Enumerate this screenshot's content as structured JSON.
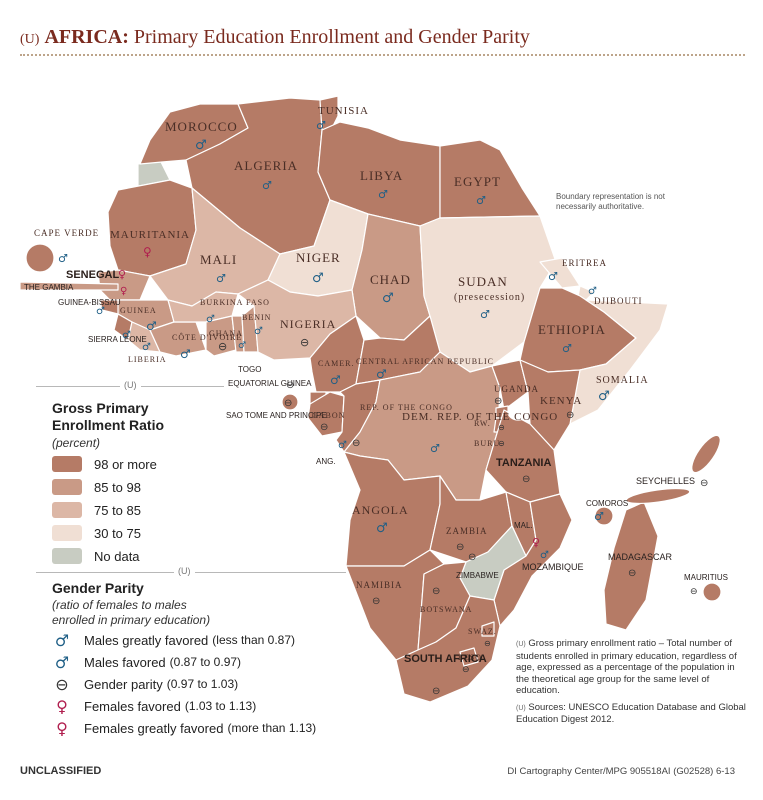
{
  "header": {
    "prefix": "(U)",
    "region": "AFRICA:",
    "title": "Primary Education Enrollment and Gender Parity"
  },
  "colors": {
    "ratio_98_or_more": "#b57b66",
    "ratio_85_to_98": "#c99a86",
    "ratio_75_to_85": "#dcb7a6",
    "ratio_30_to_75": "#f0dfd4",
    "no_data": "#c8ccc2",
    "males_symbol": "#1f5f86",
    "parity_symbol": "#333333",
    "females_symbol": "#b01e4e",
    "border": "#ffffff"
  },
  "map": {
    "boundary_note": "Boundary representation is not necessarily authoritative.",
    "countries": [
      {
        "name": "MOROCCO",
        "parity": "males_greatly_favored"
      },
      {
        "name": "TUNISIA",
        "parity": "males_favored"
      },
      {
        "name": "ALGERIA",
        "parity": "males_favored"
      },
      {
        "name": "LIBYA",
        "parity": "males_favored"
      },
      {
        "name": "EGYPT",
        "parity": "males_favored"
      },
      {
        "name": "MAURITANIA",
        "parity": "females_greatly_favored"
      },
      {
        "name": "MALI",
        "parity": "males_favored"
      },
      {
        "name": "NIGER",
        "parity": "males_greatly_favored"
      },
      {
        "name": "CHAD",
        "parity": "males_greatly_favored"
      },
      {
        "name": "SUDAN",
        "subtitle": "(presecession)",
        "parity": "males_favored"
      },
      {
        "name": "ERITREA",
        "parity": "males_favored"
      },
      {
        "name": "DJIBOUTI",
        "parity": "males_favored"
      },
      {
        "name": "ETHIOPIA",
        "parity": "males_favored"
      },
      {
        "name": "SOMALIA",
        "parity": "males_greatly_favored"
      },
      {
        "name": "CAPE VERDE",
        "parity": "males_favored"
      },
      {
        "name": "SENEGAL",
        "parity": "females_greatly_favored"
      },
      {
        "name": "THE GAMBIA",
        "parity": "females_favored"
      },
      {
        "name": "GUINEA-BISSAU",
        "parity": "males_favored"
      },
      {
        "name": "GUINEA",
        "parity": "males_greatly_favored"
      },
      {
        "name": "SIERRA LEONE",
        "parity": "males_favored"
      },
      {
        "name": "LIBERIA",
        "parity": "males_favored"
      },
      {
        "name": "BURKINA FASO",
        "parity": "males_favored"
      },
      {
        "name": "CÔTE D'IVOIRE",
        "parity": "males_greatly_favored"
      },
      {
        "name": "GHANA",
        "parity": "gender_parity"
      },
      {
        "name": "BENIN",
        "parity": "males_favored"
      },
      {
        "name": "TOGO",
        "parity": "males_favored"
      },
      {
        "name": "NIGERIA",
        "parity": "gender_parity"
      },
      {
        "name": "CAMER.",
        "parity": "males_greatly_favored"
      },
      {
        "name": "CENTRAL AFRICAN REPUBLIC",
        "parity": "males_greatly_favored"
      },
      {
        "name": "EQUATORIAL GUINEA",
        "parity": "gender_parity"
      },
      {
        "name": "SAO TOME AND PRINCIPE",
        "parity": "gender_parity"
      },
      {
        "name": "GABON",
        "parity": "gender_parity"
      },
      {
        "name": "REP. OF THE CONGO",
        "parity": "gender_parity"
      },
      {
        "name": "ANG.",
        "parity": "males_favored"
      },
      {
        "name": "DEM. REP. OF THE CONGO",
        "parity": "males_favored"
      },
      {
        "name": "UGANDA",
        "parity": "gender_parity"
      },
      {
        "name": "KENYA",
        "parity": "gender_parity"
      },
      {
        "name": "RW.",
        "parity": "gender_parity"
      },
      {
        "name": "BURU.",
        "parity": "gender_parity"
      },
      {
        "name": "TANZANIA",
        "parity": "gender_parity"
      },
      {
        "name": "SEYCHELLES",
        "parity": "gender_parity"
      },
      {
        "name": "COMOROS",
        "parity": "males_favored"
      },
      {
        "name": "ANGOLA",
        "parity": "males_greatly_favored"
      },
      {
        "name": "ZAMBIA",
        "parity": "gender_parity"
      },
      {
        "name": "MAL.",
        "parity": "females_favored"
      },
      {
        "name": "MOZAMBIQUE",
        "parity": "males_favored"
      },
      {
        "name": "ZIMBABWE",
        "parity": "gender_parity"
      },
      {
        "name": "MADAGASCAR",
        "parity": "gender_parity"
      },
      {
        "name": "MAURITIUS",
        "parity": "gender_parity"
      },
      {
        "name": "NAMIBIA",
        "parity": "gender_parity"
      },
      {
        "name": "BOTSWANA",
        "parity": "gender_parity"
      },
      {
        "name": "SWAZ.",
        "parity": "gender_parity"
      },
      {
        "name": "LESO.",
        "parity": "gender_parity"
      },
      {
        "name": "SOUTH AFRICA",
        "parity": "gender_parity"
      }
    ]
  },
  "legend": {
    "u_marker": "(U)",
    "enrollment": {
      "title_line1": "Gross Primary",
      "title_line2": "Enrollment Ratio",
      "unit": "(percent)",
      "items": [
        {
          "label": "98 or more",
          "color": "#b57b66"
        },
        {
          "label": "85 to 98",
          "color": "#c99a86"
        },
        {
          "label": "75 to 85",
          "color": "#dcb7a6"
        },
        {
          "label": "30 to 75",
          "color": "#f0dfd4"
        },
        {
          "label": "No data",
          "color": "#c8ccc2"
        }
      ]
    },
    "parity": {
      "title": "Gender Parity",
      "subtitle_line1": "(ratio of females to males",
      "subtitle_line2": "enrolled in primary education)",
      "items": [
        {
          "symbol": "♂",
          "color": "#1f5f86",
          "label": "Males greatly favored",
          "range": "(less than 0.87)"
        },
        {
          "symbol": "♂",
          "color": "#1f5f86",
          "label": "Males favored",
          "range": "(0.87 to 0.97)"
        },
        {
          "symbol": "⊖",
          "color": "#333333",
          "label": "Gender parity",
          "range": "(0.97 to 1.03)"
        },
        {
          "symbol": "♀",
          "color": "#b01e4e",
          "label": "Females favored",
          "range": "(1.03 to 1.13)"
        },
        {
          "symbol": "♀",
          "color": "#b01e4e",
          "label": "Females greatly favored",
          "range": "(more than 1.13)"
        }
      ]
    }
  },
  "footnotes": {
    "u1": "(U)",
    "definition": "Gross primary enrollment ratio – Total number of students enrolled in primary education, regardless of age, expressed as a percentage of the population in the theoretical age group for the same level of education.",
    "u2": "(U)",
    "sources": "Sources: UNESCO Education Database and Global Education Digest 2012."
  },
  "footer": {
    "classification": "UNCLASSIFIED",
    "credit": "DI Cartography Center/MPG 905518AI (G02528) 6-13"
  }
}
